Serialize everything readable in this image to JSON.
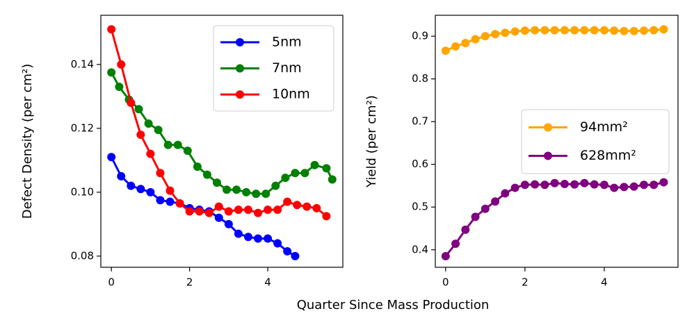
{
  "xlabel": "Quarter Since Mass Production",
  "chart_data": [
    {
      "type": "line",
      "ylabel": "Defect Density (per cm²)",
      "xlim": [
        -0.27,
        5.92
      ],
      "ylim": [
        0.0765,
        0.1554
      ],
      "xticks": [
        0,
        2,
        4
      ],
      "yticks": [
        0.08,
        {
          "value": 0.1,
          "label": "0.10"
        },
        0.12,
        0.14
      ],
      "legend": "upper right",
      "series": [
        {
          "name": "5nm",
          "color": "#0000ff",
          "x": [
            0,
            0.25,
            0.5,
            0.75,
            1,
            1.25,
            1.5,
            1.75,
            2,
            2.25,
            2.5,
            2.75,
            3,
            3.25,
            3.5,
            3.75,
            4,
            4.25,
            4.5,
            4.7
          ],
          "values": [
            0.111,
            0.105,
            0.102,
            0.101,
            0.1,
            0.0975,
            0.097,
            0.0965,
            0.095,
            0.0945,
            0.094,
            0.092,
            0.09,
            0.087,
            0.086,
            0.0855,
            0.0855,
            0.084,
            0.0815,
            0.08
          ]
        },
        {
          "name": "7nm",
          "color": "#008000",
          "x": [
            0,
            0.2,
            0.45,
            0.7,
            0.95,
            1.2,
            1.45,
            1.7,
            1.95,
            2.2,
            2.45,
            2.7,
            2.95,
            3.2,
            3.45,
            3.7,
            3.95,
            4.2,
            4.45,
            4.7,
            4.95,
            5.2,
            5.5,
            5.65
          ],
          "values": [
            0.1375,
            0.133,
            0.129,
            0.126,
            0.1215,
            0.1195,
            0.1148,
            0.1148,
            0.113,
            0.108,
            0.1055,
            0.103,
            0.1008,
            0.1008,
            0.1,
            0.0995,
            0.0995,
            0.102,
            0.1045,
            0.106,
            0.106,
            0.1085,
            0.1075,
            0.104
          ]
        },
        {
          "name": "10nm",
          "color": "#ff0000",
          "x": [
            0,
            0.25,
            0.5,
            0.75,
            1,
            1.25,
            1.5,
            1.75,
            2,
            2.25,
            2.5,
            2.75,
            3,
            3.25,
            3.5,
            3.75,
            4,
            4.25,
            4.5,
            4.75,
            5,
            5.25,
            5.5
          ],
          "values": [
            0.151,
            0.14,
            0.128,
            0.118,
            0.112,
            0.106,
            0.1005,
            0.0965,
            0.094,
            0.094,
            0.0935,
            0.0955,
            0.094,
            0.0945,
            0.0945,
            0.0935,
            0.0945,
            0.0945,
            0.097,
            0.096,
            0.0955,
            0.095,
            0.0925
          ]
        }
      ]
    },
    {
      "type": "line",
      "ylabel": "Yield (per cm²)",
      "xlim": [
        -0.26,
        5.86
      ],
      "ylim": [
        0.359,
        0.949
      ],
      "xticks": [
        0,
        2,
        4
      ],
      "yticks": [
        0.4,
        0.5,
        0.6,
        0.7,
        0.8,
        0.9
      ],
      "legend": "center right",
      "series": [
        {
          "name": "94mm²",
          "color": "#ffa500",
          "x": [
            0,
            0.25,
            0.5,
            0.75,
            1,
            1.25,
            1.5,
            1.75,
            2,
            2.25,
            2.5,
            2.75,
            3,
            3.25,
            3.5,
            3.75,
            4,
            4.25,
            4.5,
            4.75,
            5,
            5.25,
            5.5
          ],
          "values": [
            0.866,
            0.876,
            0.884,
            0.893,
            0.9,
            0.905,
            0.908,
            0.911,
            0.913,
            0.914,
            0.914,
            0.914,
            0.914,
            0.914,
            0.914,
            0.914,
            0.914,
            0.913,
            0.912,
            0.912,
            0.913,
            0.914,
            0.916
          ]
        },
        {
          "name": "628mm²",
          "color": "#800080",
          "x": [
            0,
            0.25,
            0.5,
            0.75,
            1,
            1.25,
            1.5,
            1.75,
            2,
            2.25,
            2.5,
            2.75,
            3,
            3.25,
            3.5,
            3.75,
            4,
            4.25,
            4.5,
            4.75,
            5,
            5.25,
            5.5
          ],
          "values": [
            0.385,
            0.414,
            0.447,
            0.477,
            0.496,
            0.513,
            0.532,
            0.545,
            0.552,
            0.553,
            0.552,
            0.556,
            0.554,
            0.553,
            0.556,
            0.553,
            0.552,
            0.545,
            0.547,
            0.548,
            0.552,
            0.552,
            0.558
          ]
        }
      ]
    }
  ]
}
